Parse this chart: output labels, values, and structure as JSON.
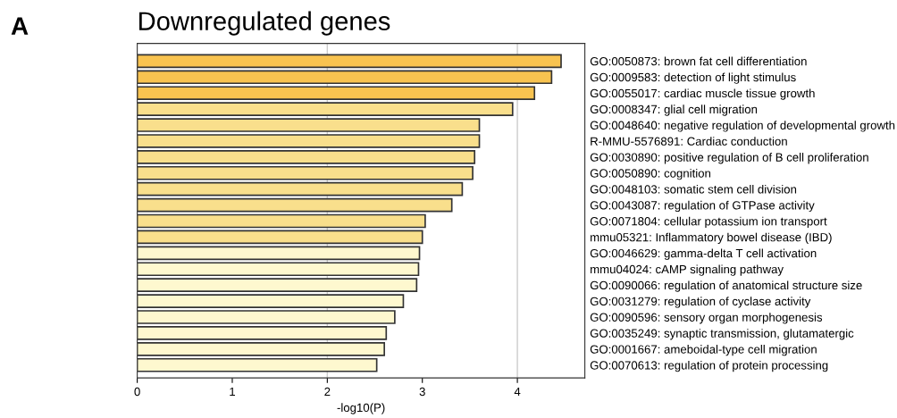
{
  "chart_data": {
    "type": "bar",
    "orientation": "horizontal",
    "title": "Downregulated genes",
    "xlabel": "-log10(P)",
    "annotations": [
      "A"
    ],
    "categories": [
      "GO:0050873: brown fat cell differentiation",
      "GO:0009583: detection of light stimulus",
      "GO:0055017: cardiac muscle tissue growth",
      "GO:0008347: glial cell migration",
      "GO:0048640: negative regulation of developmental growth",
      "R-MMU-5576891: Cardiac conduction",
      "GO:0030890: positive regulation of B cell proliferation",
      "GO:0050890: cognition",
      "GO:0048103: somatic stem cell division",
      "GO:0043087: regulation of GTPase activity",
      "GO:0071804: cellular potassium ion transport",
      "mmu05321: Inflammatory bowel disease (IBD)",
      "GO:0046629: gamma-delta T cell activation",
      "mmu04024: cAMP signaling pathway",
      "GO:0090066: regulation of anatomical structure size",
      "GO:0031279: regulation of cyclase activity",
      "GO:0090596: sensory organ morphogenesis",
      "GO:0035249: synaptic transmission, glutamatergic",
      "GO:0001667: ameboidal-type cell migration",
      "GO:0070613: regulation of protein processing"
    ],
    "values": [
      4.46,
      4.36,
      4.18,
      3.95,
      3.6,
      3.6,
      3.55,
      3.53,
      3.42,
      3.31,
      3.03,
      3.0,
      2.97,
      2.96,
      2.94,
      2.8,
      2.71,
      2.62,
      2.6,
      2.52
    ],
    "colors": [
      "#f8c350",
      "#f8c350",
      "#f8c350",
      "#f9df8c",
      "#f9df8c",
      "#f9df8c",
      "#f9df8c",
      "#f9df8c",
      "#f9df8c",
      "#f9df8c",
      "#f9df8c",
      "#f9df8c",
      "#fef8cf",
      "#fef8cf",
      "#fef8cf",
      "#fef8cf",
      "#fef8cf",
      "#fef8cf",
      "#fef8cf",
      "#fef8cf"
    ],
    "xlim": [
      0,
      4.71
    ],
    "xticks": [
      0,
      1,
      2,
      3,
      4
    ],
    "ref_lines": [
      {
        "axis": "x",
        "value": 2,
        "label": null,
        "color": "#cccccc"
      },
      {
        "axis": "x",
        "value": 4,
        "label": null,
        "color": "#cccccc"
      }
    ],
    "legend": false,
    "grid": false
  }
}
